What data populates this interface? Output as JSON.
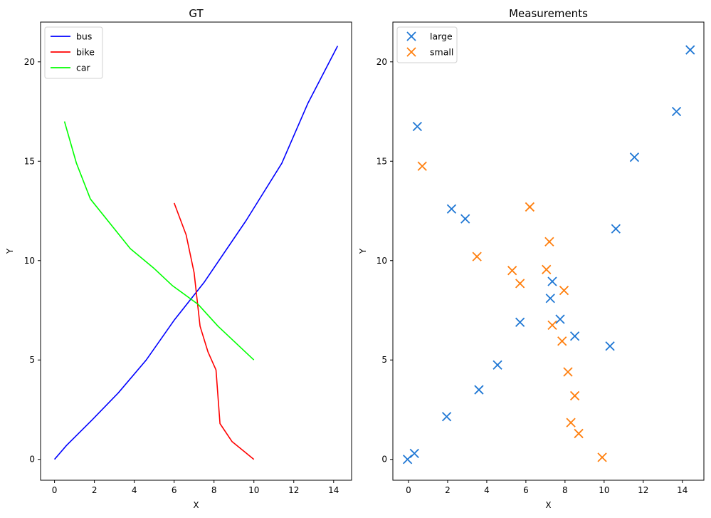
{
  "chart_data": [
    {
      "type": "line",
      "title": "GT",
      "xlabel": "X",
      "ylabel": "Y",
      "xlim": [
        -0.7,
        14.9
      ],
      "ylim": [
        -1.05,
        22.0
      ],
      "xticks": [
        0,
        2,
        4,
        6,
        8,
        10,
        12,
        14
      ],
      "yticks": [
        0,
        5,
        10,
        15,
        20
      ],
      "grid": false,
      "legend_position": "top-left",
      "series": [
        {
          "name": "bus",
          "color": "#0000ff",
          "points": [
            [
              0,
              0
            ],
            [
              0.6,
              0.7
            ],
            [
              1.9,
              2.0
            ],
            [
              3.2,
              3.35
            ],
            [
              4.6,
              5.0
            ],
            [
              6.0,
              7.0
            ],
            [
              7.5,
              8.9
            ],
            [
              9.6,
              12.0
            ],
            [
              11.4,
              14.9
            ],
            [
              12.7,
              17.9
            ],
            [
              14.2,
              20.8
            ]
          ]
        },
        {
          "name": "bike",
          "color": "#ff0000",
          "points": [
            [
              6.0,
              12.9
            ],
            [
              6.6,
              11.3
            ],
            [
              7.0,
              9.4
            ],
            [
              7.3,
              6.7
            ],
            [
              7.7,
              5.4
            ],
            [
              8.1,
              4.5
            ],
            [
              8.3,
              1.8
            ],
            [
              8.9,
              0.9
            ],
            [
              10.0,
              0
            ]
          ]
        },
        {
          "name": "car",
          "color": "#00ff00",
          "points": [
            [
              0.5,
              17.0
            ],
            [
              1.1,
              14.9
            ],
            [
              1.8,
              13.1
            ],
            [
              3.8,
              10.6
            ],
            [
              5.0,
              9.6
            ],
            [
              5.9,
              8.75
            ],
            [
              7.2,
              7.8
            ],
            [
              8.2,
              6.7
            ],
            [
              10.0,
              5.0
            ]
          ]
        }
      ]
    },
    {
      "type": "scatter",
      "title": "Measurements",
      "xlabel": "X",
      "ylabel": "Y",
      "xlim": [
        -0.8,
        15.1
      ],
      "ylim": [
        -1.05,
        22.0
      ],
      "xticks": [
        0,
        2,
        4,
        6,
        8,
        10,
        12,
        14
      ],
      "yticks": [
        0,
        5,
        10,
        15,
        20
      ],
      "grid": false,
      "legend_position": "top-left",
      "marker": "x",
      "series": [
        {
          "name": "large",
          "color": "#1f77d4",
          "points": [
            [
              -0.05,
              0.0
            ],
            [
              0.3,
              0.3
            ],
            [
              0.45,
              16.75
            ],
            [
              1.95,
              2.15
            ],
            [
              2.2,
              12.6
            ],
            [
              2.9,
              12.1
            ],
            [
              3.6,
              3.5
            ],
            [
              4.55,
              4.75
            ],
            [
              5.7,
              6.9
            ],
            [
              7.25,
              8.1
            ],
            [
              7.35,
              8.95
            ],
            [
              7.75,
              7.05
            ],
            [
              8.5,
              6.2
            ],
            [
              10.3,
              5.7
            ],
            [
              10.6,
              11.6
            ],
            [
              11.55,
              15.2
            ],
            [
              13.7,
              17.5
            ],
            [
              14.4,
              20.6
            ]
          ]
        },
        {
          "name": "small",
          "color": "#ff7f0e",
          "points": [
            [
              0.7,
              14.75
            ],
            [
              3.5,
              10.2
            ],
            [
              5.3,
              9.5
            ],
            [
              5.7,
              8.85
            ],
            [
              6.2,
              12.7
            ],
            [
              7.05,
              9.55
            ],
            [
              7.2,
              10.95
            ],
            [
              7.35,
              6.75
            ],
            [
              7.85,
              5.95
            ],
            [
              7.95,
              8.5
            ],
            [
              8.15,
              4.4
            ],
            [
              8.3,
              1.85
            ],
            [
              8.5,
              3.2
            ],
            [
              8.7,
              1.3
            ],
            [
              9.9,
              0.1
            ]
          ]
        }
      ]
    }
  ]
}
